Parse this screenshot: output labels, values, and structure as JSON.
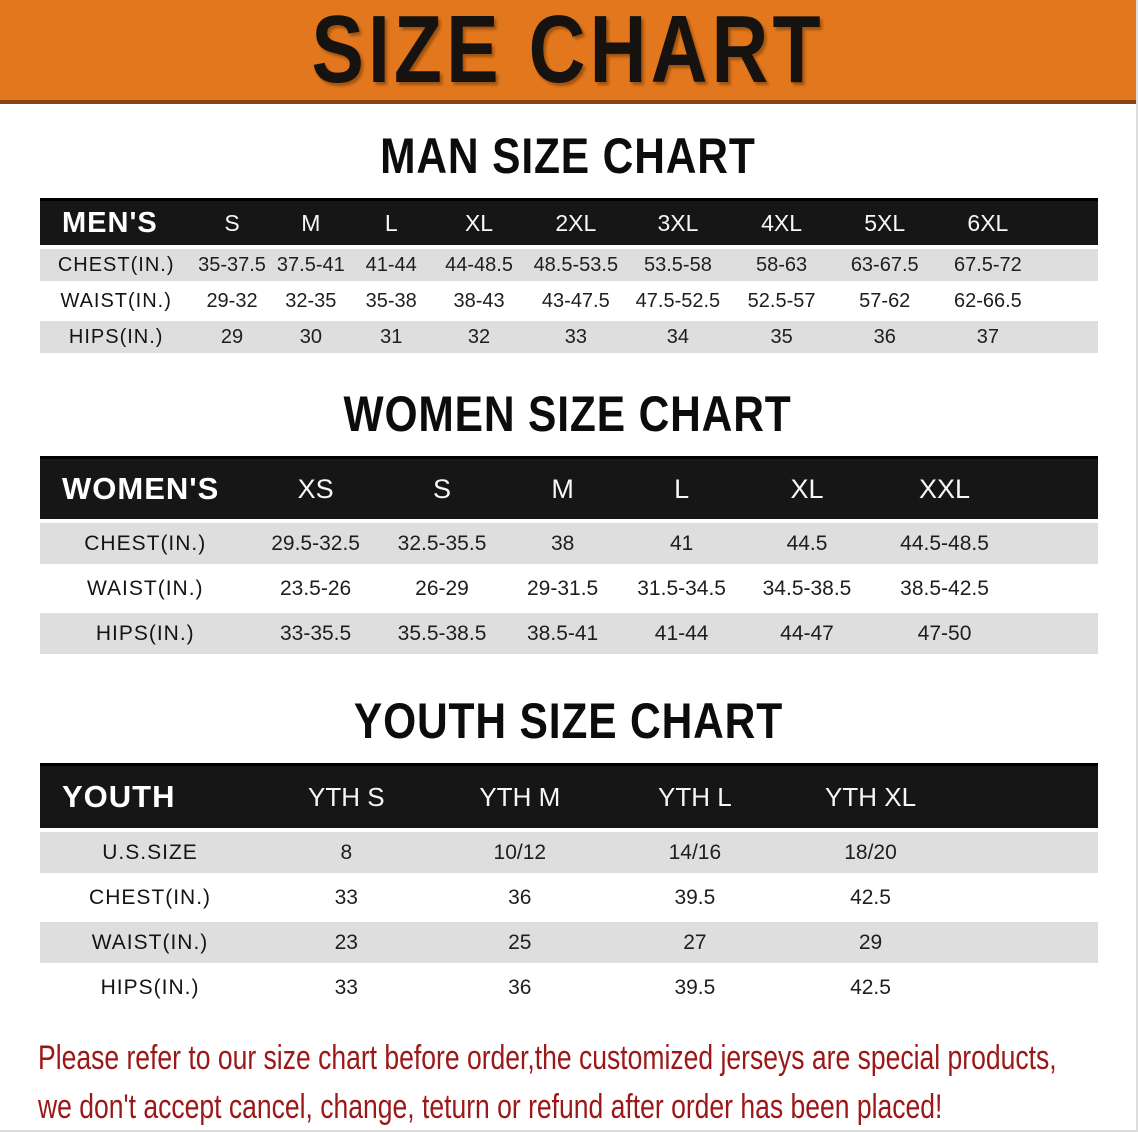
{
  "banner": {
    "title": "SIZE CHART",
    "bg_color": "#e2771d"
  },
  "sections": [
    {
      "id": "men",
      "heading": "MAN SIZE CHART",
      "corner_label": "MEN'S",
      "columns": [
        "S",
        "M",
        "L",
        "XL",
        "2XL",
        "3XL",
        "4XL",
        "5XL",
        "6XL"
      ],
      "rows": [
        {
          "label": "CHEST(IN.)",
          "values": [
            "35-37.5",
            "37.5-41",
            "41-44",
            "44-48.5",
            "48.5-53.5",
            "53.5-58",
            "58-63",
            "63-67.5",
            "67.5-72"
          ]
        },
        {
          "label": "WAIST(IN.)",
          "values": [
            "29-32",
            "32-35",
            "35-38",
            "38-43",
            "43-47.5",
            "47.5-52.5",
            "52.5-57",
            "57-62",
            "62-66.5"
          ]
        },
        {
          "label": "HIPS(IN.)",
          "values": [
            "29",
            "30",
            "31",
            "32",
            "33",
            "34",
            "35",
            "36",
            "37"
          ]
        }
      ]
    },
    {
      "id": "women",
      "heading": "WOMEN SIZE CHART",
      "corner_label": "WOMEN'S",
      "columns": [
        "XS",
        "S",
        "M",
        "L",
        "XL",
        "XXL"
      ],
      "rows": [
        {
          "label": "CHEST(IN.)",
          "values": [
            "29.5-32.5",
            "32.5-35.5",
            "38",
            "41",
            "44.5",
            "44.5-48.5"
          ]
        },
        {
          "label": "WAIST(IN.)",
          "values": [
            "23.5-26",
            "26-29",
            "29-31.5",
            "31.5-34.5",
            "34.5-38.5",
            "38.5-42.5"
          ]
        },
        {
          "label": "HIPS(IN.)",
          "values": [
            "33-35.5",
            "35.5-38.5",
            "38.5-41",
            "41-44",
            "44-47",
            "47-50"
          ]
        }
      ]
    },
    {
      "id": "youth",
      "heading": "YOUTH SIZE CHART",
      "corner_label": "YOUTH",
      "columns": [
        "YTH S",
        "YTH M",
        "YTH L",
        "YTH XL"
      ],
      "rows": [
        {
          "label": "U.S.SIZE",
          "values": [
            "8",
            "10/12",
            "14/16",
            "18/20"
          ]
        },
        {
          "label": "CHEST(IN.)",
          "values": [
            "33",
            "36",
            "39.5",
            "42.5"
          ]
        },
        {
          "label": "WAIST(IN.)",
          "values": [
            "23",
            "25",
            "27",
            "29"
          ]
        },
        {
          "label": "HIPS(IN.)",
          "values": [
            "33",
            "36",
            "39.5",
            "42.5"
          ]
        }
      ]
    }
  ],
  "footer": {
    "line1": "Please refer to our size chart before order,the customized jerseys are special products,",
    "line2": "we don't accept cancel, change, teturn or refund after order has been placed!",
    "text_color": "#9c1717"
  },
  "colors": {
    "header_bar": "#161616",
    "stripe": "#dedede",
    "banner_orange": "#e2771d",
    "banner_edge": "#8a4512"
  }
}
